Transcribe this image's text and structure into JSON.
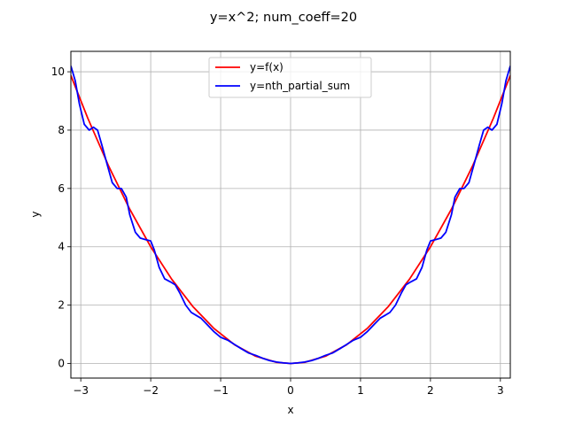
{
  "chart_data": {
    "type": "line",
    "title": "y=x^2; num_coeff=20",
    "xlabel": "x",
    "ylabel": "y",
    "xlim": [
      -3.14159,
      3.14159
    ],
    "ylim": [
      -0.5,
      10.7
    ],
    "xticks": [
      -3,
      -2,
      -1,
      0,
      1,
      2,
      3
    ],
    "yticks": [
      0,
      2,
      4,
      6,
      8,
      10
    ],
    "grid": true,
    "legend_position": "top-center",
    "series": [
      {
        "name": "y=f(x)",
        "color": "#ff0000",
        "x": [
          -3.1416,
          -2.9,
          -2.6,
          -2.3,
          -2.0,
          -1.7,
          -1.4,
          -1.1,
          -0.8,
          -0.5,
          -0.2,
          0.0,
          0.2,
          0.5,
          0.8,
          1.1,
          1.4,
          1.7,
          2.0,
          2.3,
          2.6,
          2.9,
          3.1416
        ],
        "values": [
          9.87,
          8.41,
          6.76,
          5.29,
          4.0,
          2.89,
          1.96,
          1.21,
          0.64,
          0.25,
          0.04,
          0.0,
          0.04,
          0.25,
          0.64,
          1.21,
          1.96,
          2.89,
          4.0,
          5.29,
          6.76,
          8.41,
          9.87
        ]
      },
      {
        "name": "y=nth_partial_sum",
        "color": "#0000ff",
        "x": [
          -3.1416,
          -3.08,
          -3.02,
          -2.95,
          -2.88,
          -2.82,
          -2.76,
          -2.7,
          -2.62,
          -2.55,
          -2.48,
          -2.42,
          -2.35,
          -2.3,
          -2.22,
          -2.15,
          -2.08,
          -2.0,
          -1.95,
          -1.88,
          -1.8,
          -1.72,
          -1.65,
          -1.58,
          -1.5,
          -1.42,
          -1.35,
          -1.28,
          -1.2,
          -1.1,
          -1.0,
          -0.9,
          -0.8,
          -0.7,
          -0.6,
          -0.5,
          -0.4,
          -0.3,
          -0.2,
          -0.1,
          0.0,
          0.1,
          0.2,
          0.3,
          0.4,
          0.5,
          0.6,
          0.7,
          0.8,
          0.9,
          1.0,
          1.1,
          1.2,
          1.28,
          1.35,
          1.42,
          1.5,
          1.58,
          1.65,
          1.72,
          1.8,
          1.88,
          1.95,
          2.0,
          2.08,
          2.15,
          2.22,
          2.3,
          2.35,
          2.42,
          2.48,
          2.55,
          2.62,
          2.7,
          2.76,
          2.82,
          2.88,
          2.95,
          3.02,
          3.08,
          3.1416
        ],
        "values": [
          10.2,
          9.7,
          8.9,
          8.2,
          8.0,
          8.1,
          8.0,
          7.5,
          6.8,
          6.2,
          6.0,
          6.0,
          5.7,
          5.1,
          4.5,
          4.3,
          4.25,
          4.2,
          3.9,
          3.3,
          2.9,
          2.8,
          2.7,
          2.4,
          2.0,
          1.75,
          1.65,
          1.55,
          1.35,
          1.1,
          0.9,
          0.8,
          0.65,
          0.5,
          0.36,
          0.28,
          0.18,
          0.1,
          0.05,
          0.02,
          0.0,
          0.02,
          0.05,
          0.1,
          0.18,
          0.28,
          0.36,
          0.5,
          0.65,
          0.8,
          0.9,
          1.1,
          1.35,
          1.55,
          1.65,
          1.75,
          2.0,
          2.4,
          2.7,
          2.8,
          2.9,
          3.3,
          3.9,
          4.2,
          4.25,
          4.3,
          4.5,
          5.1,
          5.7,
          6.0,
          6.0,
          6.2,
          6.8,
          7.5,
          8.0,
          8.1,
          8.0,
          8.2,
          8.9,
          9.7,
          10.2
        ]
      }
    ]
  }
}
